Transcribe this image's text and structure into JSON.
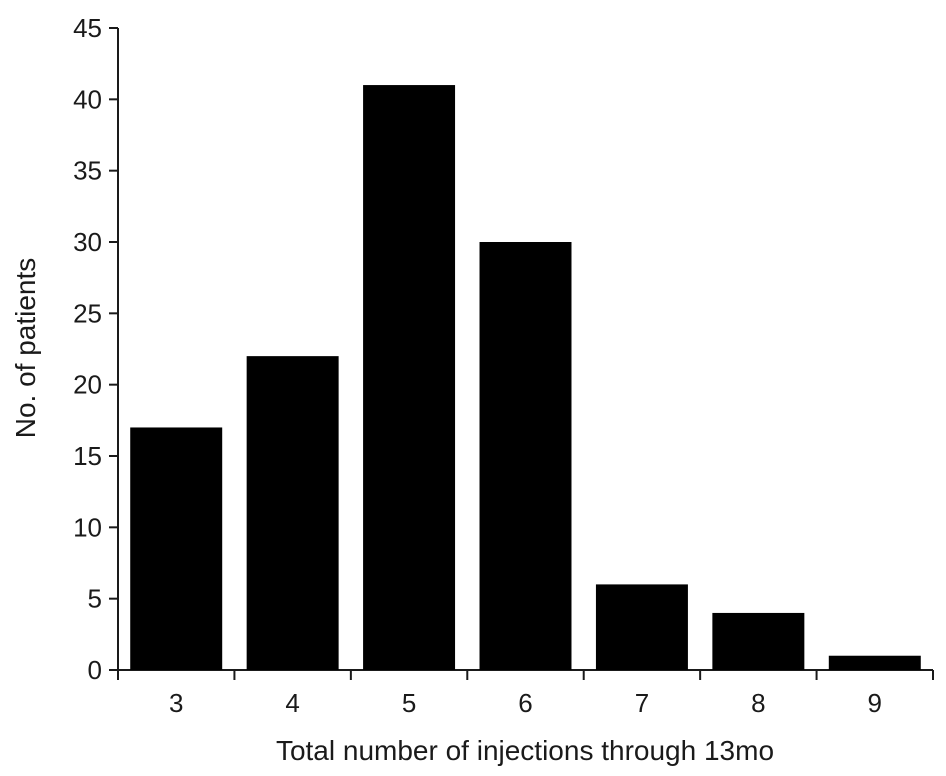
{
  "chart_data": {
    "type": "bar",
    "title": "",
    "xlabel": "Total number of injections through 13mo",
    "ylabel": "No. of patients",
    "categories": [
      "3",
      "4",
      "5",
      "6",
      "7",
      "8",
      "9"
    ],
    "values": [
      17,
      22,
      41,
      30,
      6,
      4,
      1
    ],
    "ylim": [
      0,
      45
    ],
    "yticks": [
      0,
      5,
      10,
      15,
      20,
      25,
      30,
      35,
      40,
      45
    ],
    "grid": false,
    "legend": "none",
    "bar_color": "#000000",
    "axis_color": "#1a1a1a"
  }
}
